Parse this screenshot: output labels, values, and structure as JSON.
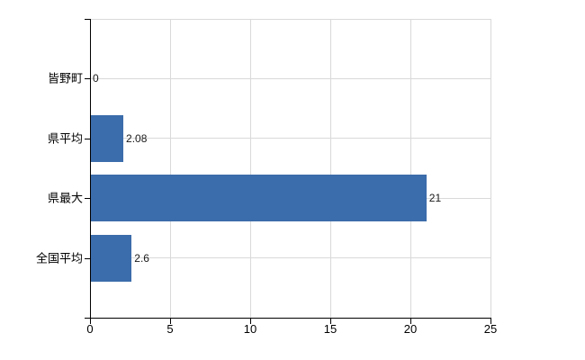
{
  "chart_data": {
    "type": "bar",
    "orientation": "horizontal",
    "categories": [
      "皆野町",
      "県平均",
      "県最大",
      "全国平均"
    ],
    "values": [
      0,
      2.08,
      21,
      2.6
    ],
    "value_labels": [
      "0",
      "2.08",
      "21",
      "2.6"
    ],
    "x_ticks": [
      0,
      5,
      10,
      15,
      20,
      25
    ],
    "xlim": [
      0,
      25
    ],
    "grid": "on",
    "legend": "none",
    "colors": {
      "bar": "#3b6cab",
      "grid": "#d9d9d9",
      "axis": "#000000",
      "text": "#000000",
      "background": "#ffffff"
    }
  }
}
